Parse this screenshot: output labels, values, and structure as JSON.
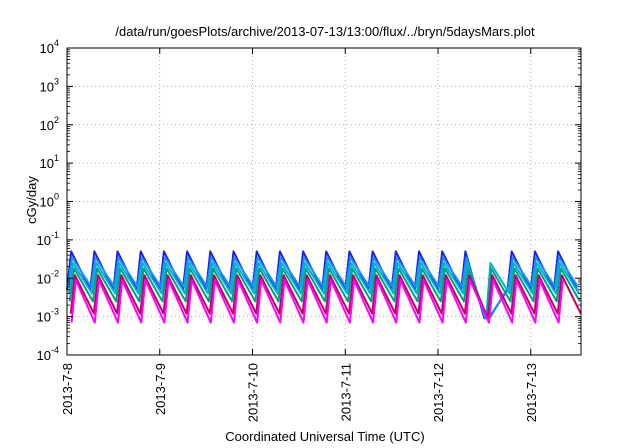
{
  "chart_data": {
    "type": "line",
    "title": "/data/run/goesPlots/archive/2013-07-13/13:00/flux/../bryn/5daysMars.plot",
    "xlabel": "Coordinated Universal Time (UTC)",
    "ylabel": "cGy/day",
    "yscale": "log",
    "ylim": [
      0.0001,
      10000
    ],
    "xlim": [
      "2013-07-08 00:00",
      "2013-07-13 13:00"
    ],
    "grid": true,
    "x_ticks": [
      {
        "value": "2013-07-08",
        "label": "2013-7-8"
      },
      {
        "value": "2013-07-09",
        "label": "2013-7-9"
      },
      {
        "value": "2013-07-10",
        "label": "2013-7-10"
      },
      {
        "value": "2013-07-11",
        "label": "2013-7-11"
      },
      {
        "value": "2013-07-12",
        "label": "2013-7-12"
      },
      {
        "value": "2013-07-13",
        "label": "2013-7-13"
      }
    ],
    "y_ticks": [
      {
        "value": 0.0001,
        "base": "10",
        "exp": "-4"
      },
      {
        "value": 0.001,
        "base": "10",
        "exp": "-3"
      },
      {
        "value": 0.01,
        "base": "10",
        "exp": "-2"
      },
      {
        "value": 0.1,
        "base": "10",
        "exp": "-1"
      },
      {
        "value": 1,
        "base": "10",
        "exp": "0"
      },
      {
        "value": 10,
        "base": "10",
        "exp": "1"
      },
      {
        "value": 100,
        "base": "10",
        "exp": "2"
      },
      {
        "value": 1000,
        "base": "10",
        "exp": "3"
      },
      {
        "value": 10000,
        "base": "10",
        "exp": "4"
      }
    ],
    "oscillation_cycles_per_day": 4,
    "series": [
      {
        "color": "#2020e0",
        "peak": 0.05,
        "trough": 0.005
      },
      {
        "color": "#1a90ff",
        "peak": 0.035,
        "trough": 0.006
      },
      {
        "color": "#00b4c8",
        "peak": 0.025,
        "trough": 0.004
      },
      {
        "color": "#00a088",
        "peak": 0.018,
        "trough": 0.0025
      },
      {
        "color": "#c00060",
        "peak": 0.012,
        "trough": 0.0012
      },
      {
        "color": "#ff00ff",
        "peak": 0.009,
        "trough": 0.0007
      }
    ],
    "dip": {
      "start": "2013-07-12 12:00",
      "end": "2013-07-12 13:30",
      "value": 0.0009
    }
  }
}
